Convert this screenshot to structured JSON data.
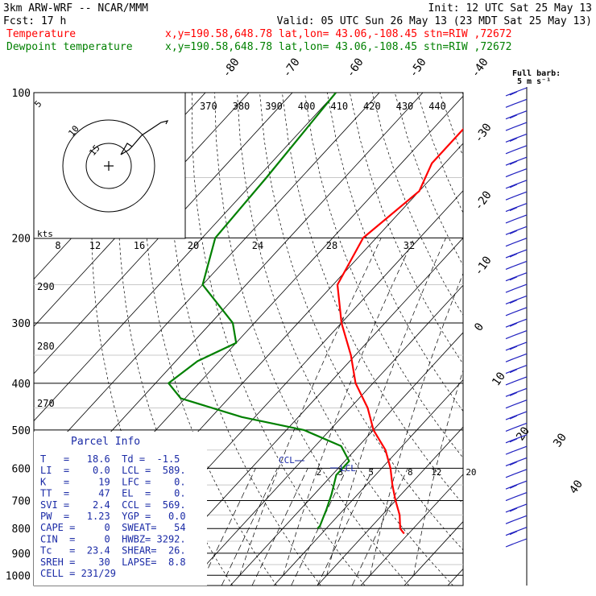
{
  "header": {
    "model": "3km ARW-WRF -- NCAR/MMM",
    "init": "Init: 12 UTC Sat 25 May 13",
    "fcst": "Fcst:    17 h",
    "valid": "Valid: 05 UTC Sun 26 May 13 (23 MDT Sat 25 May 13)",
    "temp_label": "Temperature",
    "temp_info": "x,y=190.58,648.78   lat,lon= 43.06,-108.45  stn=RIW ,72672",
    "dew_label": "Dewpoint temperature",
    "dew_info": "x,y=190.58,648.78   lat,lon= 43.06,-108.45  stn=RIW ,72672"
  },
  "colors": {
    "temperature": "#ff0000",
    "dewpoint": "#008000",
    "parcel_text": "#1a2aa6",
    "wind": "#2020c0",
    "grid": "#000000"
  },
  "wind_panel": {
    "title_line1": "Full barb:",
    "title_line2": "5 m s⁻¹"
  },
  "chart_data": {
    "type": "line",
    "title": "",
    "pressure_levels": [
      100,
      200,
      300,
      400,
      500,
      600,
      700,
      800,
      900,
      1000
    ],
    "pressure_labels": [
      "100",
      "200",
      "300",
      "400",
      "500",
      "600",
      "700",
      "800",
      "900",
      "1000"
    ],
    "isotherm_labels": [
      "-80",
      "-70",
      "-60",
      "-50",
      "-40",
      "-30",
      "-20",
      "-10",
      "0",
      "10",
      "20",
      "30",
      "40"
    ],
    "theta_labels_top": [
      "370",
      "380",
      "390",
      "400",
      "410",
      "420",
      "430",
      "440"
    ],
    "theta_labels_left": [
      "290",
      "280",
      "270"
    ],
    "mixing_ratio_labels": [
      "2",
      "3",
      "5",
      "8",
      "12",
      "20"
    ],
    "hodograph_speed_labels": [
      "8",
      "12",
      "16",
      "20",
      "24",
      "28",
      "32"
    ],
    "hodograph_unit": "kts",
    "hodograph_ring_labels": [
      "5",
      "10",
      "15"
    ],
    "series": [
      {
        "name": "Temperature",
        "color": "#ff0000",
        "points": [
          [
            100,
            -53
          ],
          [
            140,
            -53
          ],
          [
            160,
            -50
          ],
          [
            200,
            -53
          ],
          [
            250,
            -49
          ],
          [
            300,
            -40
          ],
          [
            350,
            -31
          ],
          [
            400,
            -24
          ],
          [
            450,
            -16
          ],
          [
            500,
            -10
          ],
          [
            550,
            -3
          ],
          [
            600,
            2
          ],
          [
            650,
            6
          ],
          [
            700,
            10
          ],
          [
            750,
            14
          ],
          [
            800,
            17
          ],
          [
            810,
            18
          ],
          [
            820,
            19
          ]
        ]
      },
      {
        "name": "Dewpoint temperature",
        "color": "#008000",
        "points": [
          [
            100,
            -90
          ],
          [
            150,
            -88
          ],
          [
            200,
            -87
          ],
          [
            250,
            -80
          ],
          [
            300,
            -65
          ],
          [
            330,
            -60
          ],
          [
            360,
            -65
          ],
          [
            400,
            -67
          ],
          [
            430,
            -61
          ],
          [
            470,
            -43
          ],
          [
            500,
            -26
          ],
          [
            540,
            -14
          ],
          [
            580,
            -9
          ],
          [
            620,
            -9
          ],
          [
            680,
            -6
          ],
          [
            730,
            -4
          ],
          [
            760,
            -3
          ],
          [
            790,
            -2
          ],
          [
            800,
            -2
          ]
        ]
      }
    ],
    "annotations": [
      "CCL",
      "LCL"
    ],
    "wind_barb_count": 40
  },
  "parcel_info": {
    "title": "Parcel Info",
    "rows": [
      "T   =   18.6  Td =  -1.5",
      "LI  =    0.0  LCL =  589.",
      "K   =     19  LFC =    0.",
      "TT  =     47  EL  =    0.",
      "SVI =    2.4  CCL =  569.",
      "PW  =   1.23  YGP =   0.0",
      "CAPE =     0  SWEAT=   54",
      "CIN  =     0  HWBZ= 3292.",
      "Tc   =  23.4  SHEAR=  26.",
      "SREH =    30  LAPSE=  8.8",
      "CELL = 231/29"
    ]
  }
}
